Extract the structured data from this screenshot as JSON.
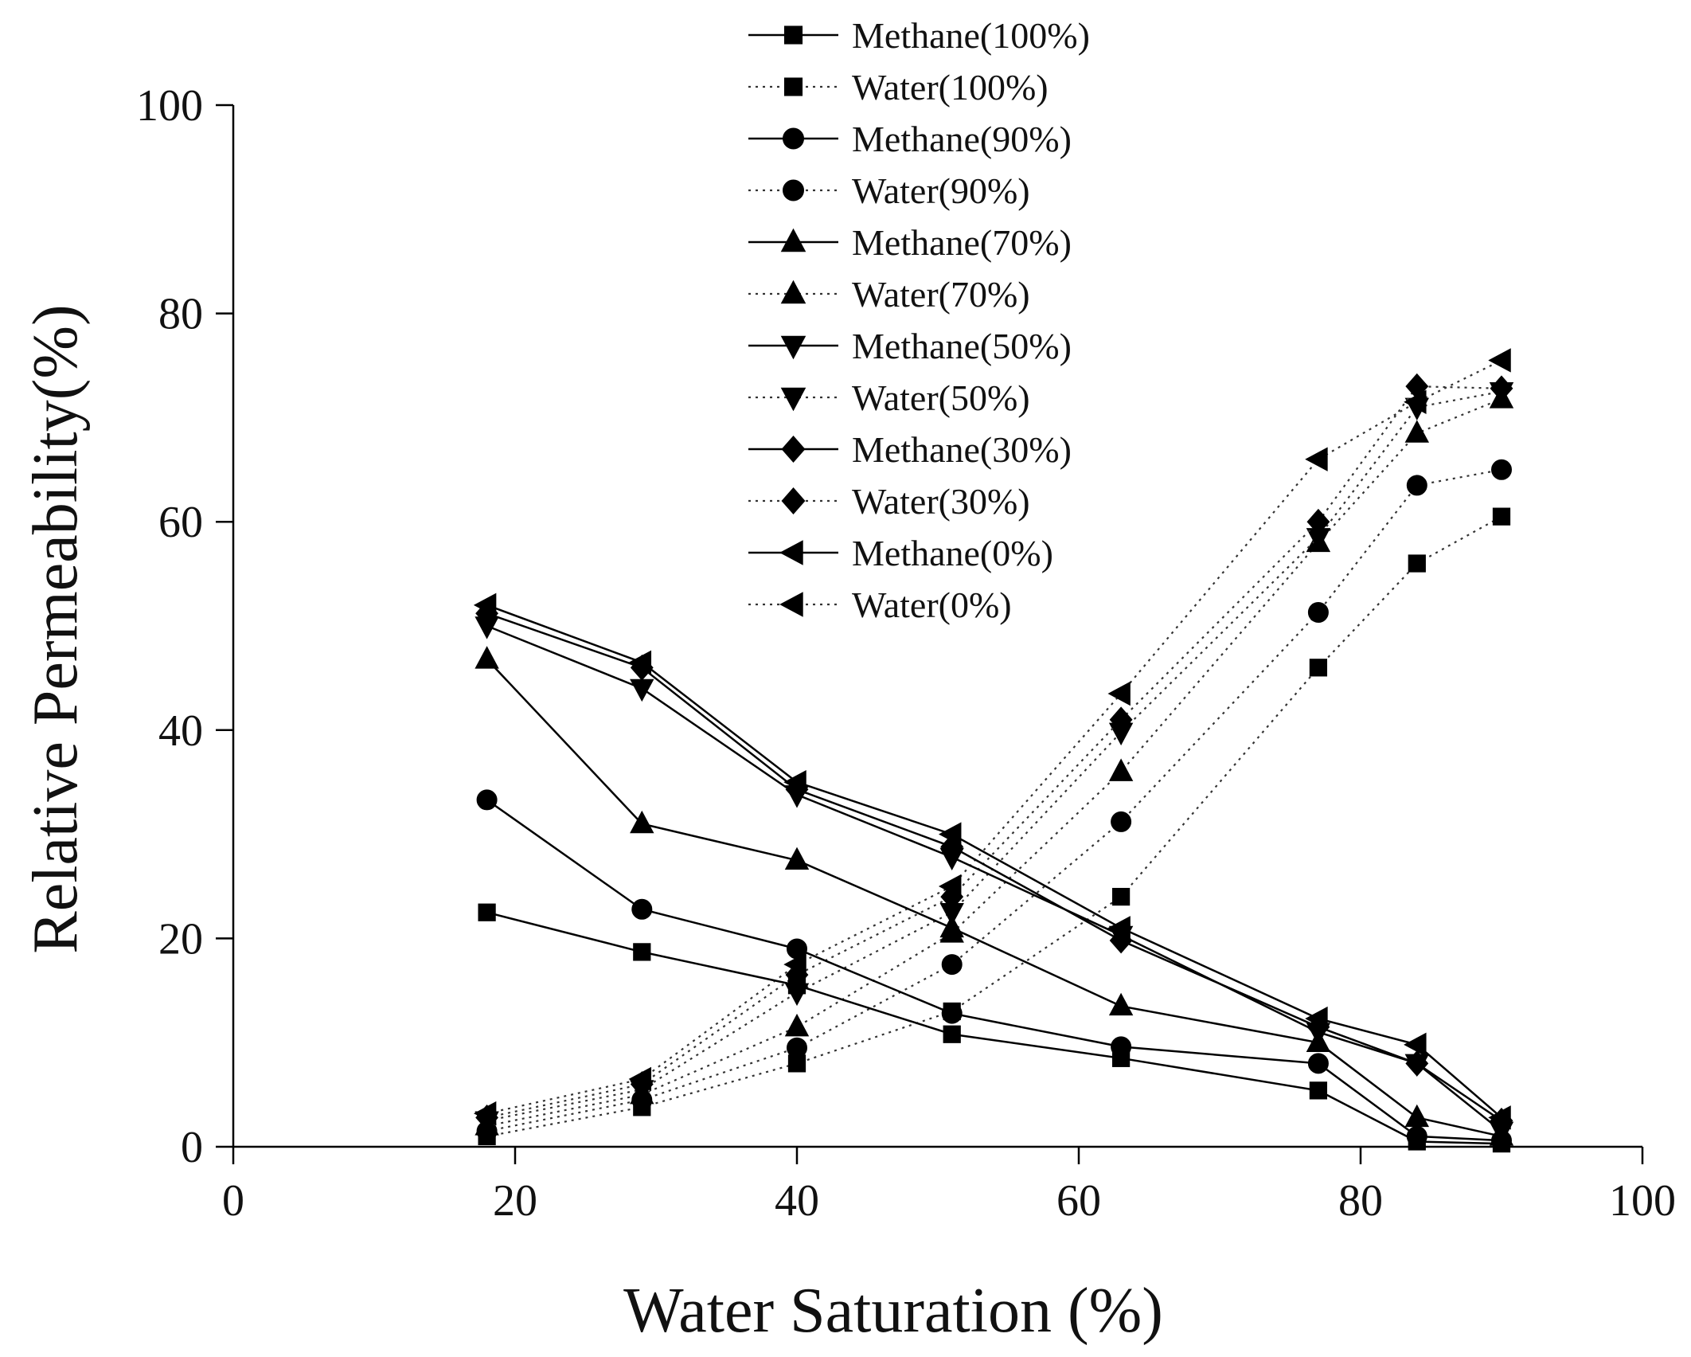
{
  "chart_data": {
    "type": "line",
    "title": "",
    "xlabel": "Water Saturation (%)",
    "ylabel": "Relative Permeability(%)",
    "xlim": [
      0,
      100
    ],
    "ylim": [
      0,
      100
    ],
    "xticks": [
      0,
      20,
      40,
      60,
      80,
      100
    ],
    "yticks": [
      0,
      20,
      40,
      60,
      80,
      100
    ],
    "grid": false,
    "legend_position": "top-center",
    "x": [
      18,
      29,
      40,
      51,
      63,
      77,
      84,
      90
    ],
    "series": [
      {
        "name": "Methane(100%)",
        "marker": "square",
        "line": "solid",
        "values": [
          22.5,
          18.7,
          15.5,
          10.8,
          8.5,
          5.4,
          0.5,
          0.3
        ]
      },
      {
        "name": "Water(100%)",
        "marker": "square",
        "line": "dotted",
        "values": [
          1.0,
          3.8,
          8.0,
          13.0,
          24.0,
          46.0,
          56.0,
          60.5
        ]
      },
      {
        "name": "Methane(90%)",
        "marker": "circle",
        "line": "solid",
        "values": [
          33.3,
          22.8,
          19.0,
          12.8,
          9.6,
          8.0,
          1.0,
          0.6
        ]
      },
      {
        "name": "Water(90%)",
        "marker": "circle",
        "line": "dotted",
        "values": [
          1.5,
          4.5,
          9.5,
          17.5,
          31.2,
          51.3,
          63.5,
          65.0
        ]
      },
      {
        "name": "Methane(70%)",
        "marker": "triangle-up",
        "line": "solid",
        "values": [
          46.8,
          31.0,
          27.5,
          21.0,
          13.5,
          10.0,
          2.8,
          1.0
        ]
      },
      {
        "name": "Water(70%)",
        "marker": "triangle-up",
        "line": "dotted",
        "values": [
          2.0,
          5.0,
          11.5,
          20.5,
          36.0,
          58.0,
          68.5,
          71.8
        ]
      },
      {
        "name": "Methane(50%)",
        "marker": "triangle-down",
        "line": "solid",
        "values": [
          50.0,
          44.0,
          33.8,
          27.8,
          20.3,
          11.0,
          8.0,
          1.5
        ]
      },
      {
        "name": "Water(50%)",
        "marker": "triangle-down",
        "line": "dotted",
        "values": [
          2.5,
          5.5,
          14.8,
          22.5,
          39.8,
          58.5,
          71.0,
          72.5
        ]
      },
      {
        "name": "Methane(30%)",
        "marker": "diamond",
        "line": "solid",
        "values": [
          51.2,
          46.0,
          34.3,
          28.8,
          19.8,
          11.5,
          8.0,
          2.5
        ]
      },
      {
        "name": "Water(30%)",
        "marker": "diamond",
        "line": "dotted",
        "values": [
          2.8,
          6.0,
          16.5,
          24.0,
          41.0,
          60.0,
          73.0,
          72.8
        ]
      },
      {
        "name": "Methane(0%)",
        "marker": "triangle-left",
        "line": "solid",
        "values": [
          52.0,
          46.5,
          35.0,
          30.0,
          21.0,
          12.3,
          9.8,
          2.8
        ]
      },
      {
        "name": "Water(0%)",
        "marker": "triangle-left",
        "line": "dotted",
        "values": [
          3.2,
          6.5,
          17.5,
          25.0,
          43.5,
          66.0,
          71.5,
          75.5
        ]
      }
    ]
  },
  "colors": {
    "ink": "#000000",
    "background": "#ffffff"
  }
}
